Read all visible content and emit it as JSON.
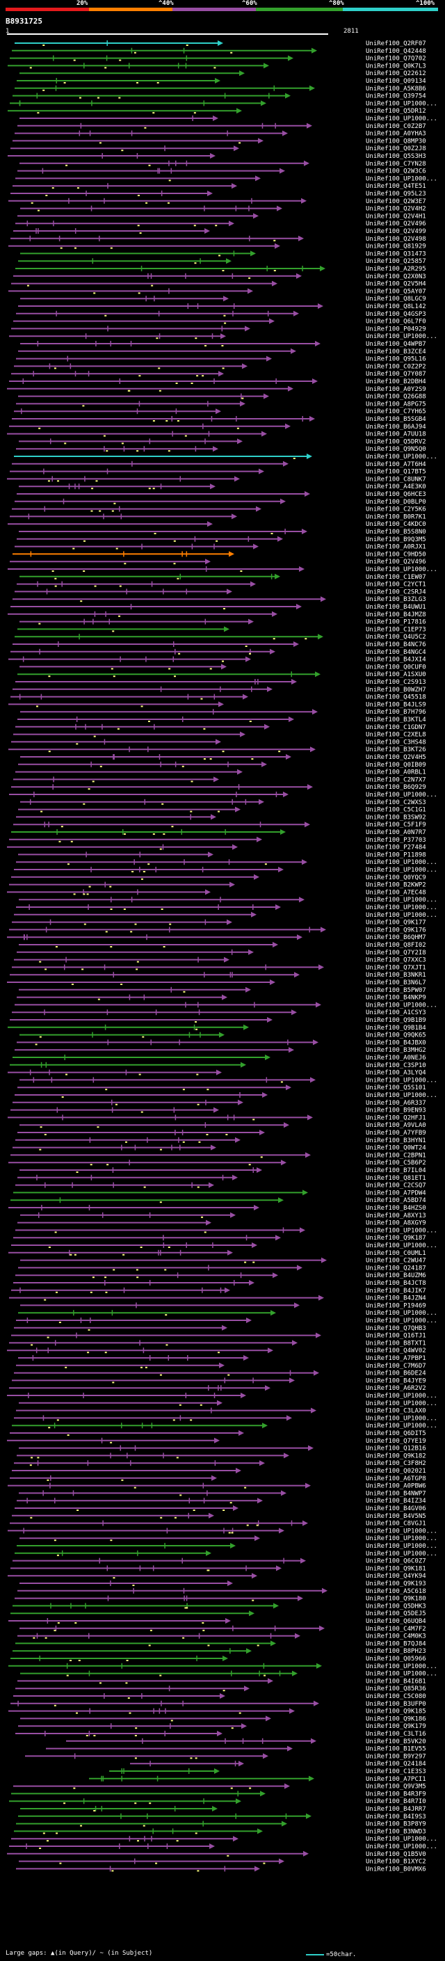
{
  "legend": {
    "labels": [
      "20%",
      "^40%",
      "^60%",
      "^80%",
      "^100%"
    ],
    "colors": [
      "#e41a1c",
      "#ff7f00",
      "#984ea3",
      "#33a02c",
      "#2fd0c9"
    ]
  },
  "query": {
    "id": "B8931725",
    "start": "1",
    "end": "2811"
  },
  "footer": {
    "gaps_text": "Large gaps: ▲(in Query)/ ~ (in Subject)",
    "scale_text": "=50char."
  },
  "hits": [
    {
      "label": "UniRef100_Q2RF07",
      "color": "#2fd0c9"
    },
    {
      "label": "UniRef100_Q42448",
      "color": "#33a02c"
    },
    {
      "label": "UniRef100_Q7Q702",
      "color": "#33a02c"
    },
    {
      "label": "UniRef100_Q0K7L3",
      "color": "#33a02c"
    },
    {
      "label": "UniRef100_Q22612",
      "color": "#33a02c"
    },
    {
      "label": "UniRef100_Q09134",
      "color": "#33a02c"
    },
    {
      "label": "UniRef100_A5K8B6",
      "color": "#33a02c"
    },
    {
      "label": "UniRef100_Q39754",
      "color": "#33a02c"
    },
    {
      "label": "UniRef100_UP1000...",
      "color": "#33a02c"
    },
    {
      "label": "UniRef100_Q5DR12",
      "color": "#33a02c"
    },
    {
      "label": "UniRef100_UP1000...",
      "color": "#984ea3"
    },
    {
      "label": "UniRef100_C0Z2B7",
      "color": "#984ea3"
    },
    {
      "label": "UniRef100_A0YHA3",
      "color": "#984ea3"
    },
    {
      "label": "UniRef100_Q8MP30",
      "color": "#984ea3"
    },
    {
      "label": "UniRef100_Q0Z2J8",
      "color": "#984ea3"
    },
    {
      "label": "UniRef100_Q5S3H3",
      "color": "#984ea3"
    },
    {
      "label": "UniRef100_C7YN28",
      "color": "#984ea3"
    },
    {
      "label": "UniRef100_Q2W3C6",
      "color": "#984ea3"
    },
    {
      "label": "UniRef100_UP1000...",
      "color": "#984ea3"
    },
    {
      "label": "UniRef100_Q4TE51",
      "color": "#984ea3"
    },
    {
      "label": "UniRef100_Q95L23",
      "color": "#984ea3"
    },
    {
      "label": "UniRef100_Q2W3E7",
      "color": "#984ea3"
    },
    {
      "label": "UniRef100_Q2V4H2",
      "color": "#984ea3"
    },
    {
      "label": "UniRef100_Q2V4H1",
      "color": "#984ea3"
    },
    {
      "label": "UniRef100_Q2V496",
      "color": "#984ea3"
    },
    {
      "label": "UniRef100_Q2V499",
      "color": "#984ea3"
    },
    {
      "label": "UniRef100_Q2V498",
      "color": "#984ea3"
    },
    {
      "label": "UniRef100_Q81929",
      "color": "#984ea3"
    },
    {
      "label": "UniRef100_Q31473",
      "color": "#33a02c"
    },
    {
      "label": "UniRef100_Q25857",
      "color": "#33a02c"
    },
    {
      "label": "UniRef100_A2R295",
      "color": "#33a02c"
    },
    {
      "label": "UniRef100_Q2X0N3",
      "color": "#984ea3"
    },
    {
      "label": "UniRef100_Q2V5H4",
      "color": "#984ea3"
    },
    {
      "label": "UniRef100_Q5AY07",
      "color": "#984ea3"
    },
    {
      "label": "UniRef100_Q8LGC9",
      "color": "#984ea3"
    },
    {
      "label": "UniRef100_Q8L142",
      "color": "#984ea3"
    },
    {
      "label": "UniRef100_Q4GSP3",
      "color": "#984ea3"
    },
    {
      "label": "UniRef100_Q6L7F0",
      "color": "#984ea3"
    },
    {
      "label": "UniRef100_P04929",
      "color": "#984ea3"
    },
    {
      "label": "UniRef100_UP1000...",
      "color": "#984ea3"
    },
    {
      "label": "UniRef100_Q4WPB7",
      "color": "#984ea3"
    },
    {
      "label": "UniRef100_B3ZCE4",
      "color": "#984ea3"
    },
    {
      "label": "UniRef100_Q95L16",
      "color": "#984ea3"
    },
    {
      "label": "UniRef100_C0Z2P2",
      "color": "#984ea3"
    },
    {
      "label": "UniRef100_Q7Y087",
      "color": "#984ea3"
    },
    {
      "label": "UniRef100_B2DBH4",
      "color": "#984ea3"
    },
    {
      "label": "UniRef100_A0Y2S9",
      "color": "#984ea3"
    },
    {
      "label": "UniRef100_Q26G88",
      "color": "#984ea3"
    },
    {
      "label": "UniRef100_A8PG75",
      "color": "#984ea3"
    },
    {
      "label": "UniRef100_C7YH65",
      "color": "#984ea3"
    },
    {
      "label": "UniRef100_B5SGB4",
      "color": "#984ea3"
    },
    {
      "label": "UniRef100_B6AJ94",
      "color": "#984ea3"
    },
    {
      "label": "UniRef100_A7UU18",
      "color": "#984ea3"
    },
    {
      "label": "UniRef100_Q5DRV2",
      "color": "#984ea3"
    },
    {
      "label": "UniRef100_Q9N5Q0",
      "color": "#984ea3"
    },
    {
      "label": "UniRef100_UP1000...",
      "color": "#2fd0c9"
    },
    {
      "label": "UniRef100_A7T6H4",
      "color": "#984ea3"
    },
    {
      "label": "UniRef100_Q17BT5",
      "color": "#984ea3"
    },
    {
      "label": "UniRef100_C8UNK7",
      "color": "#984ea3"
    },
    {
      "label": "UniRef100_A4E3K0",
      "color": "#984ea3"
    },
    {
      "label": "UniRef100_Q6HCE3",
      "color": "#984ea3"
    },
    {
      "label": "UniRef100_D0BLP0",
      "color": "#984ea3"
    },
    {
      "label": "UniRef100_C2Y5K6",
      "color": "#984ea3"
    },
    {
      "label": "UniRef100_B0R7K1",
      "color": "#984ea3"
    },
    {
      "label": "UniRef100_C4KDC0",
      "color": "#984ea3"
    },
    {
      "label": "UniRef100_B5S8N0",
      "color": "#984ea3"
    },
    {
      "label": "UniRef100_B9Q3M5",
      "color": "#984ea3"
    },
    {
      "label": "UniRef100_A0RJX1",
      "color": "#984ea3"
    },
    {
      "label": "UniRef100_C9HD50",
      "color": "#ff7f00"
    },
    {
      "label": "UniRef100_Q2V496",
      "color": "#984ea3"
    },
    {
      "label": "UniRef100_UP1000...",
      "color": "#984ea3"
    },
    {
      "label": "UniRef100_C1EW07",
      "color": "#33a02c"
    },
    {
      "label": "UniRef100_C2YCT1",
      "color": "#984ea3"
    },
    {
      "label": "UniRef100_C2SRJ4",
      "color": "#984ea3"
    },
    {
      "label": "UniRef100_B3ZLG3",
      "color": "#984ea3"
    },
    {
      "label": "UniRef100_B4UWU1",
      "color": "#984ea3"
    },
    {
      "label": "UniRef100_B4JMZ8",
      "color": "#984ea3"
    },
    {
      "label": "UniRef100_P17816",
      "color": "#984ea3"
    },
    {
      "label": "UniRef100_C1EP73",
      "color": "#33a02c"
    },
    {
      "label": "UniRef100_Q4U5C2",
      "color": "#33a02c"
    },
    {
      "label": "UniRef100_B4NC76",
      "color": "#984ea3"
    },
    {
      "label": "UniRef100_B4NGC4",
      "color": "#984ea3"
    },
    {
      "label": "UniRef100_B4JXI4",
      "color": "#984ea3"
    },
    {
      "label": "UniRef100_Q0CUF0",
      "color": "#984ea3"
    },
    {
      "label": "UniRef100_A1SXU0",
      "color": "#33a02c"
    },
    {
      "label": "UniRef100_C2S913",
      "color": "#984ea3"
    },
    {
      "label": "UniRef100_B0WZH7",
      "color": "#984ea3"
    },
    {
      "label": "UniRef100_Q45518",
      "color": "#984ea3"
    },
    {
      "label": "UniRef100_B4JLS9",
      "color": "#984ea3"
    },
    {
      "label": "UniRef100_B7H796",
      "color": "#984ea3"
    },
    {
      "label": "UniRef100_B3KTL4",
      "color": "#984ea3"
    },
    {
      "label": "UniRef100_C1GDN7",
      "color": "#984ea3"
    },
    {
      "label": "UniRef100_C2XEL8",
      "color": "#984ea3"
    },
    {
      "label": "UniRef100_C3HS48",
      "color": "#984ea3"
    },
    {
      "label": "UniRef100_B3KT26",
      "color": "#984ea3"
    },
    {
      "label": "UniRef100_Q2V4H5",
      "color": "#984ea3"
    },
    {
      "label": "UniRef100_Q0IB09",
      "color": "#984ea3"
    },
    {
      "label": "UniRef100_A0RBL1",
      "color": "#984ea3"
    },
    {
      "label": "UniRef100_C2N7X7",
      "color": "#984ea3"
    },
    {
      "label": "UniRef100_B6Q929",
      "color": "#984ea3"
    },
    {
      "label": "UniRef100_UP1000...",
      "color": "#984ea3"
    },
    {
      "label": "UniRef100_C2WXS3",
      "color": "#984ea3"
    },
    {
      "label": "UniRef100_C5C1G1",
      "color": "#984ea3"
    },
    {
      "label": "UniRef100_B3SW92",
      "color": "#984ea3"
    },
    {
      "label": "UniRef100_C5F1F9",
      "color": "#984ea3"
    },
    {
      "label": "UniRef100_A0N7R7",
      "color": "#33a02c"
    },
    {
      "label": "UniRef100_P37703",
      "color": "#984ea3"
    },
    {
      "label": "UniRef100_P27484",
      "color": "#984ea3"
    },
    {
      "label": "UniRef100_P11898",
      "color": "#984ea3"
    },
    {
      "label": "UniRef100_UP1000...",
      "color": "#984ea3"
    },
    {
      "label": "UniRef100_UP1000...",
      "color": "#984ea3"
    },
    {
      "label": "UniRef100_Q0YQC9",
      "color": "#984ea3"
    },
    {
      "label": "UniRef100_B2KWP2",
      "color": "#984ea3"
    },
    {
      "label": "UniRef100_A7EC48",
      "color": "#984ea3"
    },
    {
      "label": "UniRef100_UP1000...",
      "color": "#984ea3"
    },
    {
      "label": "UniRef100_UP1000...",
      "color": "#984ea3"
    },
    {
      "label": "UniRef100_UP1000...",
      "color": "#984ea3"
    },
    {
      "label": "UniRef100_Q9K177",
      "color": "#984ea3"
    },
    {
      "label": "UniRef100_Q9K176",
      "color": "#984ea3"
    },
    {
      "label": "UniRef100_B6QHM7",
      "color": "#984ea3"
    },
    {
      "label": "UniRef100_Q8FI02",
      "color": "#984ea3"
    },
    {
      "label": "UniRef100_Q7Y2I8",
      "color": "#984ea3"
    },
    {
      "label": "UniRef100_Q7XXC3",
      "color": "#984ea3"
    },
    {
      "label": "UniRef100_Q7XJT1",
      "color": "#984ea3"
    },
    {
      "label": "UniRef100_B3NKR1",
      "color": "#984ea3"
    },
    {
      "label": "UniRef100_B3N6L7",
      "color": "#984ea3"
    },
    {
      "label": "UniRef100_B5PW07",
      "color": "#984ea3"
    },
    {
      "label": "UniRef100_B4NKP9",
      "color": "#984ea3"
    },
    {
      "label": "UniRef100_UP1000...",
      "color": "#984ea3"
    },
    {
      "label": "UniRef100_A1CSY3",
      "color": "#984ea3"
    },
    {
      "label": "UniRef100_Q9B1B9",
      "color": "#984ea3"
    },
    {
      "label": "UniRef100_Q9B1B4",
      "color": "#33a02c"
    },
    {
      "label": "UniRef100_Q9QK65",
      "color": "#33a02c"
    },
    {
      "label": "UniRef100_B4JBX0",
      "color": "#984ea3"
    },
    {
      "label": "UniRef100_B3MHG2",
      "color": "#984ea3"
    },
    {
      "label": "UniRef100_A0NEJ6",
      "color": "#33a02c"
    },
    {
      "label": "UniRef100_C3SP10",
      "color": "#33a02c"
    },
    {
      "label": "UniRef100_A3LYQ4",
      "color": "#984ea3"
    },
    {
      "label": "UniRef100_UP1000...",
      "color": "#984ea3"
    },
    {
      "label": "UniRef100_Q5S101",
      "color": "#984ea3"
    },
    {
      "label": "UniRef100_UP1000...",
      "color": "#984ea3"
    },
    {
      "label": "UniRef100_A6R337",
      "color": "#984ea3"
    },
    {
      "label": "UniRef100_B9EN93",
      "color": "#984ea3"
    },
    {
      "label": "UniRef100_Q2HFJ1",
      "color": "#984ea3"
    },
    {
      "label": "UniRef100_A9VLA0",
      "color": "#984ea3"
    },
    {
      "label": "UniRef100_A7YFB9",
      "color": "#984ea3"
    },
    {
      "label": "UniRef100_B3HYN1",
      "color": "#984ea3"
    },
    {
      "label": "UniRef100_Q0WT24",
      "color": "#984ea3"
    },
    {
      "label": "UniRef100_C2BPN1",
      "color": "#984ea3"
    },
    {
      "label": "UniRef100_C5B6P2",
      "color": "#984ea3"
    },
    {
      "label": "UniRef100_B7IL04",
      "color": "#984ea3"
    },
    {
      "label": "UniRef100_Q81ET1",
      "color": "#984ea3"
    },
    {
      "label": "UniRef100_C2CSQ7",
      "color": "#984ea3"
    },
    {
      "label": "UniRef100_A7PDW4",
      "color": "#33a02c"
    },
    {
      "label": "UniRef100_A5BD74",
      "color": "#33a02c"
    },
    {
      "label": "UniRef100_B4HZS0",
      "color": "#984ea3"
    },
    {
      "label": "UniRef100_A8XY13",
      "color": "#984ea3"
    },
    {
      "label": "UniRef100_A8XGY9",
      "color": "#984ea3"
    },
    {
      "label": "UniRef100_UP1000...",
      "color": "#984ea3"
    },
    {
      "label": "UniRef100_Q9K187",
      "color": "#984ea3"
    },
    {
      "label": "UniRef100_UP1000...",
      "color": "#984ea3"
    },
    {
      "label": "UniRef100_C0UML1",
      "color": "#984ea3"
    },
    {
      "label": "UniRef100_C2WU47",
      "color": "#984ea3"
    },
    {
      "label": "UniRef100_Q24187",
      "color": "#984ea3"
    },
    {
      "label": "UniRef100_B4UZM6",
      "color": "#984ea3"
    },
    {
      "label": "UniRef100_B4JCT8",
      "color": "#984ea3"
    },
    {
      "label": "UniRef100_B4JIK7",
      "color": "#984ea3"
    },
    {
      "label": "UniRef100_B4JZN4",
      "color": "#984ea3"
    },
    {
      "label": "UniRef100_P19469",
      "color": "#984ea3"
    },
    {
      "label": "UniRef100_UP1000...",
      "color": "#33a02c"
    },
    {
      "label": "UniRef100_UP1000...",
      "color": "#984ea3"
    },
    {
      "label": "UniRef100_Q7QHB3",
      "color": "#984ea3"
    },
    {
      "label": "UniRef100_Q16TJ1",
      "color": "#984ea3"
    },
    {
      "label": "UniRef100_B8TXT1",
      "color": "#984ea3"
    },
    {
      "label": "UniRef100_Q4WV02",
      "color": "#984ea3"
    },
    {
      "label": "UniRef100_A7PBP1",
      "color": "#984ea3"
    },
    {
      "label": "UniRef100_C7M6D7",
      "color": "#984ea3"
    },
    {
      "label": "UniRef100_B6DE24",
      "color": "#984ea3"
    },
    {
      "label": "UniRef100_B4JYE9",
      "color": "#984ea3"
    },
    {
      "label": "UniRef100_A6R2V2",
      "color": "#984ea3"
    },
    {
      "label": "UniRef100_UP1000...",
      "color": "#984ea3"
    },
    {
      "label": "UniRef100_UP1000...",
      "color": "#984ea3"
    },
    {
      "label": "UniRef100_C3LAX0",
      "color": "#984ea3"
    },
    {
      "label": "UniRef100_UP1000...",
      "color": "#984ea3"
    },
    {
      "label": "UniRef100_UP1000...",
      "color": "#33a02c"
    },
    {
      "label": "UniRef100_Q6DIT5",
      "color": "#984ea3"
    },
    {
      "label": "UniRef100_Q7YE19",
      "color": "#984ea3"
    },
    {
      "label": "UniRef100_Q12B16",
      "color": "#984ea3"
    },
    {
      "label": "UniRef100_Q9K182",
      "color": "#984ea3"
    },
    {
      "label": "UniRef100_C3F8H2",
      "color": "#984ea3"
    },
    {
      "label": "UniRef100_Q02021",
      "color": "#984ea3"
    },
    {
      "label": "UniRef100_A6TGP8",
      "color": "#984ea3"
    },
    {
      "label": "UniRef100_A0PBW6",
      "color": "#984ea3"
    },
    {
      "label": "UniRef100_B4NWP7",
      "color": "#984ea3"
    },
    {
      "label": "UniRef100_B4IZ34",
      "color": "#984ea3"
    },
    {
      "label": "UniRef100_B4GV06",
      "color": "#984ea3"
    },
    {
      "label": "UniRef100_B4V5N5",
      "color": "#984ea3"
    },
    {
      "label": "UniRef100_C8VGJ1",
      "color": "#984ea3"
    },
    {
      "label": "UniRef100_UP1000...",
      "color": "#984ea3"
    },
    {
      "label": "UniRef100_UP1000...",
      "color": "#984ea3"
    },
    {
      "label": "UniRef100_UP1000...",
      "color": "#33a02c"
    },
    {
      "label": "UniRef100_UP1000...",
      "color": "#33a02c"
    },
    {
      "label": "UniRef100_Q6C0Z7",
      "color": "#984ea3"
    },
    {
      "label": "UniRef100_Q9K181",
      "color": "#984ea3"
    },
    {
      "label": "UniRef100_Q4YK94",
      "color": "#984ea3"
    },
    {
      "label": "UniRef100_Q9K193",
      "color": "#984ea3"
    },
    {
      "label": "UniRef100_A5C618",
      "color": "#984ea3"
    },
    {
      "label": "UniRef100_Q9K180",
      "color": "#984ea3"
    },
    {
      "label": "UniRef100_Q5DHK3",
      "color": "#33a02c"
    },
    {
      "label": "UniRef100_Q5DEJ5",
      "color": "#33a02c"
    },
    {
      "label": "UniRef100_Q6UQB4",
      "color": "#984ea3"
    },
    {
      "label": "UniRef100_C4M7F2",
      "color": "#984ea3"
    },
    {
      "label": "UniRef100_C4M0K3",
      "color": "#984ea3"
    },
    {
      "label": "UniRef100_B7QJ84",
      "color": "#33a02c"
    },
    {
      "label": "UniRef100_B8PH23",
      "color": "#33a02c"
    },
    {
      "label": "UniRef100_Q05966",
      "color": "#33a02c"
    },
    {
      "label": "UniRef100_UP1000...",
      "color": "#33a02c"
    },
    {
      "label": "UniRef100_UP1000...",
      "color": "#33a02c"
    },
    {
      "label": "UniRef100_B4I6B1",
      "color": "#984ea3"
    },
    {
      "label": "UniRef100_Q85R36",
      "color": "#984ea3"
    },
    {
      "label": "UniRef100_C5C080",
      "color": "#984ea3"
    },
    {
      "label": "UniRef100_B3UFP0",
      "color": "#984ea3"
    },
    {
      "label": "UniRef100_Q9K185",
      "color": "#984ea3"
    },
    {
      "label": "UniRef100_Q9K186",
      "color": "#984ea3"
    },
    {
      "label": "UniRef100_Q9K179",
      "color": "#984ea3"
    },
    {
      "label": "UniRef100_C3LT16",
      "color": "#984ea3"
    },
    {
      "label": "UniRef100_B5VK20",
      "color": "#984ea3"
    },
    {
      "label": "UniRef100_B1EV55",
      "color": "#984ea3"
    },
    {
      "label": "UniRef100_B9Y297",
      "color": "#984ea3"
    },
    {
      "label": "UniRef100_Q24184",
      "color": "#984ea3"
    },
    {
      "label": "UniRef100_C1E3S3",
      "color": "#33a02c"
    },
    {
      "label": "UniRef100_A7PCI1",
      "color": "#33a02c"
    },
    {
      "label": "UniRef100_Q9V3M5",
      "color": "#984ea3"
    },
    {
      "label": "UniRef100_B4R3F9",
      "color": "#33a02c"
    },
    {
      "label": "UniRef100_B4R7I0",
      "color": "#33a02c"
    },
    {
      "label": "UniRef100_B4JRR7",
      "color": "#33a02c"
    },
    {
      "label": "UniRef100_B4I9S3",
      "color": "#33a02c"
    },
    {
      "label": "UniRef100_B3P8Y9",
      "color": "#33a02c"
    },
    {
      "label": "UniRef100_B3NWD3",
      "color": "#33a02c"
    },
    {
      "label": "UniRef100_UP1000...",
      "color": "#984ea3"
    },
    {
      "label": "UniRef100_UP1000...",
      "color": "#984ea3"
    },
    {
      "label": "UniRef100_Q1B5V0",
      "color": "#984ea3"
    },
    {
      "label": "UniRef100_B1XYC2",
      "color": "#984ea3"
    },
    {
      "label": "UniRef100_B0VMX6",
      "color": "#984ea3"
    }
  ]
}
